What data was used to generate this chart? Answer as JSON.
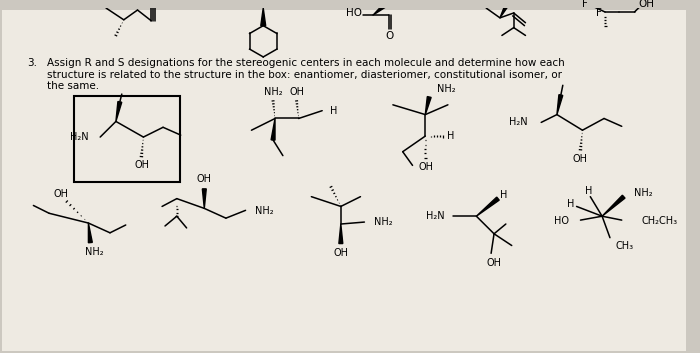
{
  "background_color": "#ccc8c0",
  "page_color": "#eeeae2",
  "title_text": "Assign R and S designations for the stereogenic centers in each molecule and determine how each",
  "title_text2": "structure is related to the structure in the box: enantiomer, diasteriomer, constitutional isomer, or",
  "title_text3": "the same.",
  "font_size_body": 7.5,
  "font_size_label": 7.0
}
